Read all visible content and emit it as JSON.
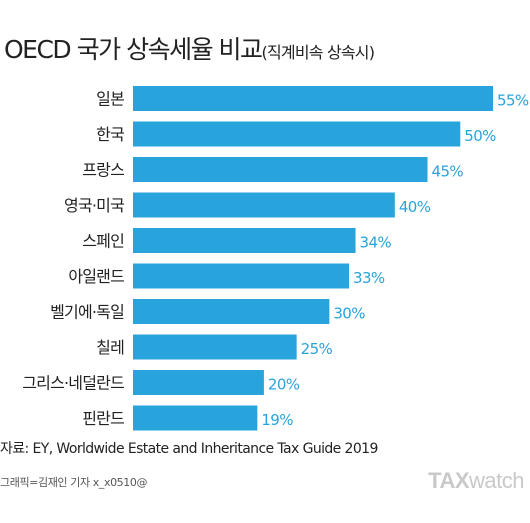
{
  "title": "OECD 국가 상속세율 비교",
  "subtitle": "(직계비속 상속시)",
  "chart_data": {
    "type": "bar",
    "orientation": "horizontal",
    "categories": [
      "일본",
      "한국",
      "프랑스",
      "영국·미국",
      "스페인",
      "아일랜드",
      "벨기에·독일",
      "칠레",
      "그리스·네덜란드",
      "핀란드"
    ],
    "values": [
      55,
      50,
      45,
      40,
      34,
      33,
      30,
      25,
      20,
      19
    ],
    "value_labels": [
      "55%",
      "50%",
      "45%",
      "40%",
      "34%",
      "33%",
      "30%",
      "25%",
      "20%",
      "19%"
    ],
    "xlim": [
      0,
      55
    ],
    "grid": false,
    "bar_color": "#29a3dc",
    "label_color": "#29a3dc"
  },
  "source": "자료: EY, Worldwide Estate and Inheritance Tax Guide 2019",
  "credit": "그래픽=김재인 기자 x_x0510@",
  "logo": {
    "part1": "TAX",
    "part2": "watch"
  }
}
